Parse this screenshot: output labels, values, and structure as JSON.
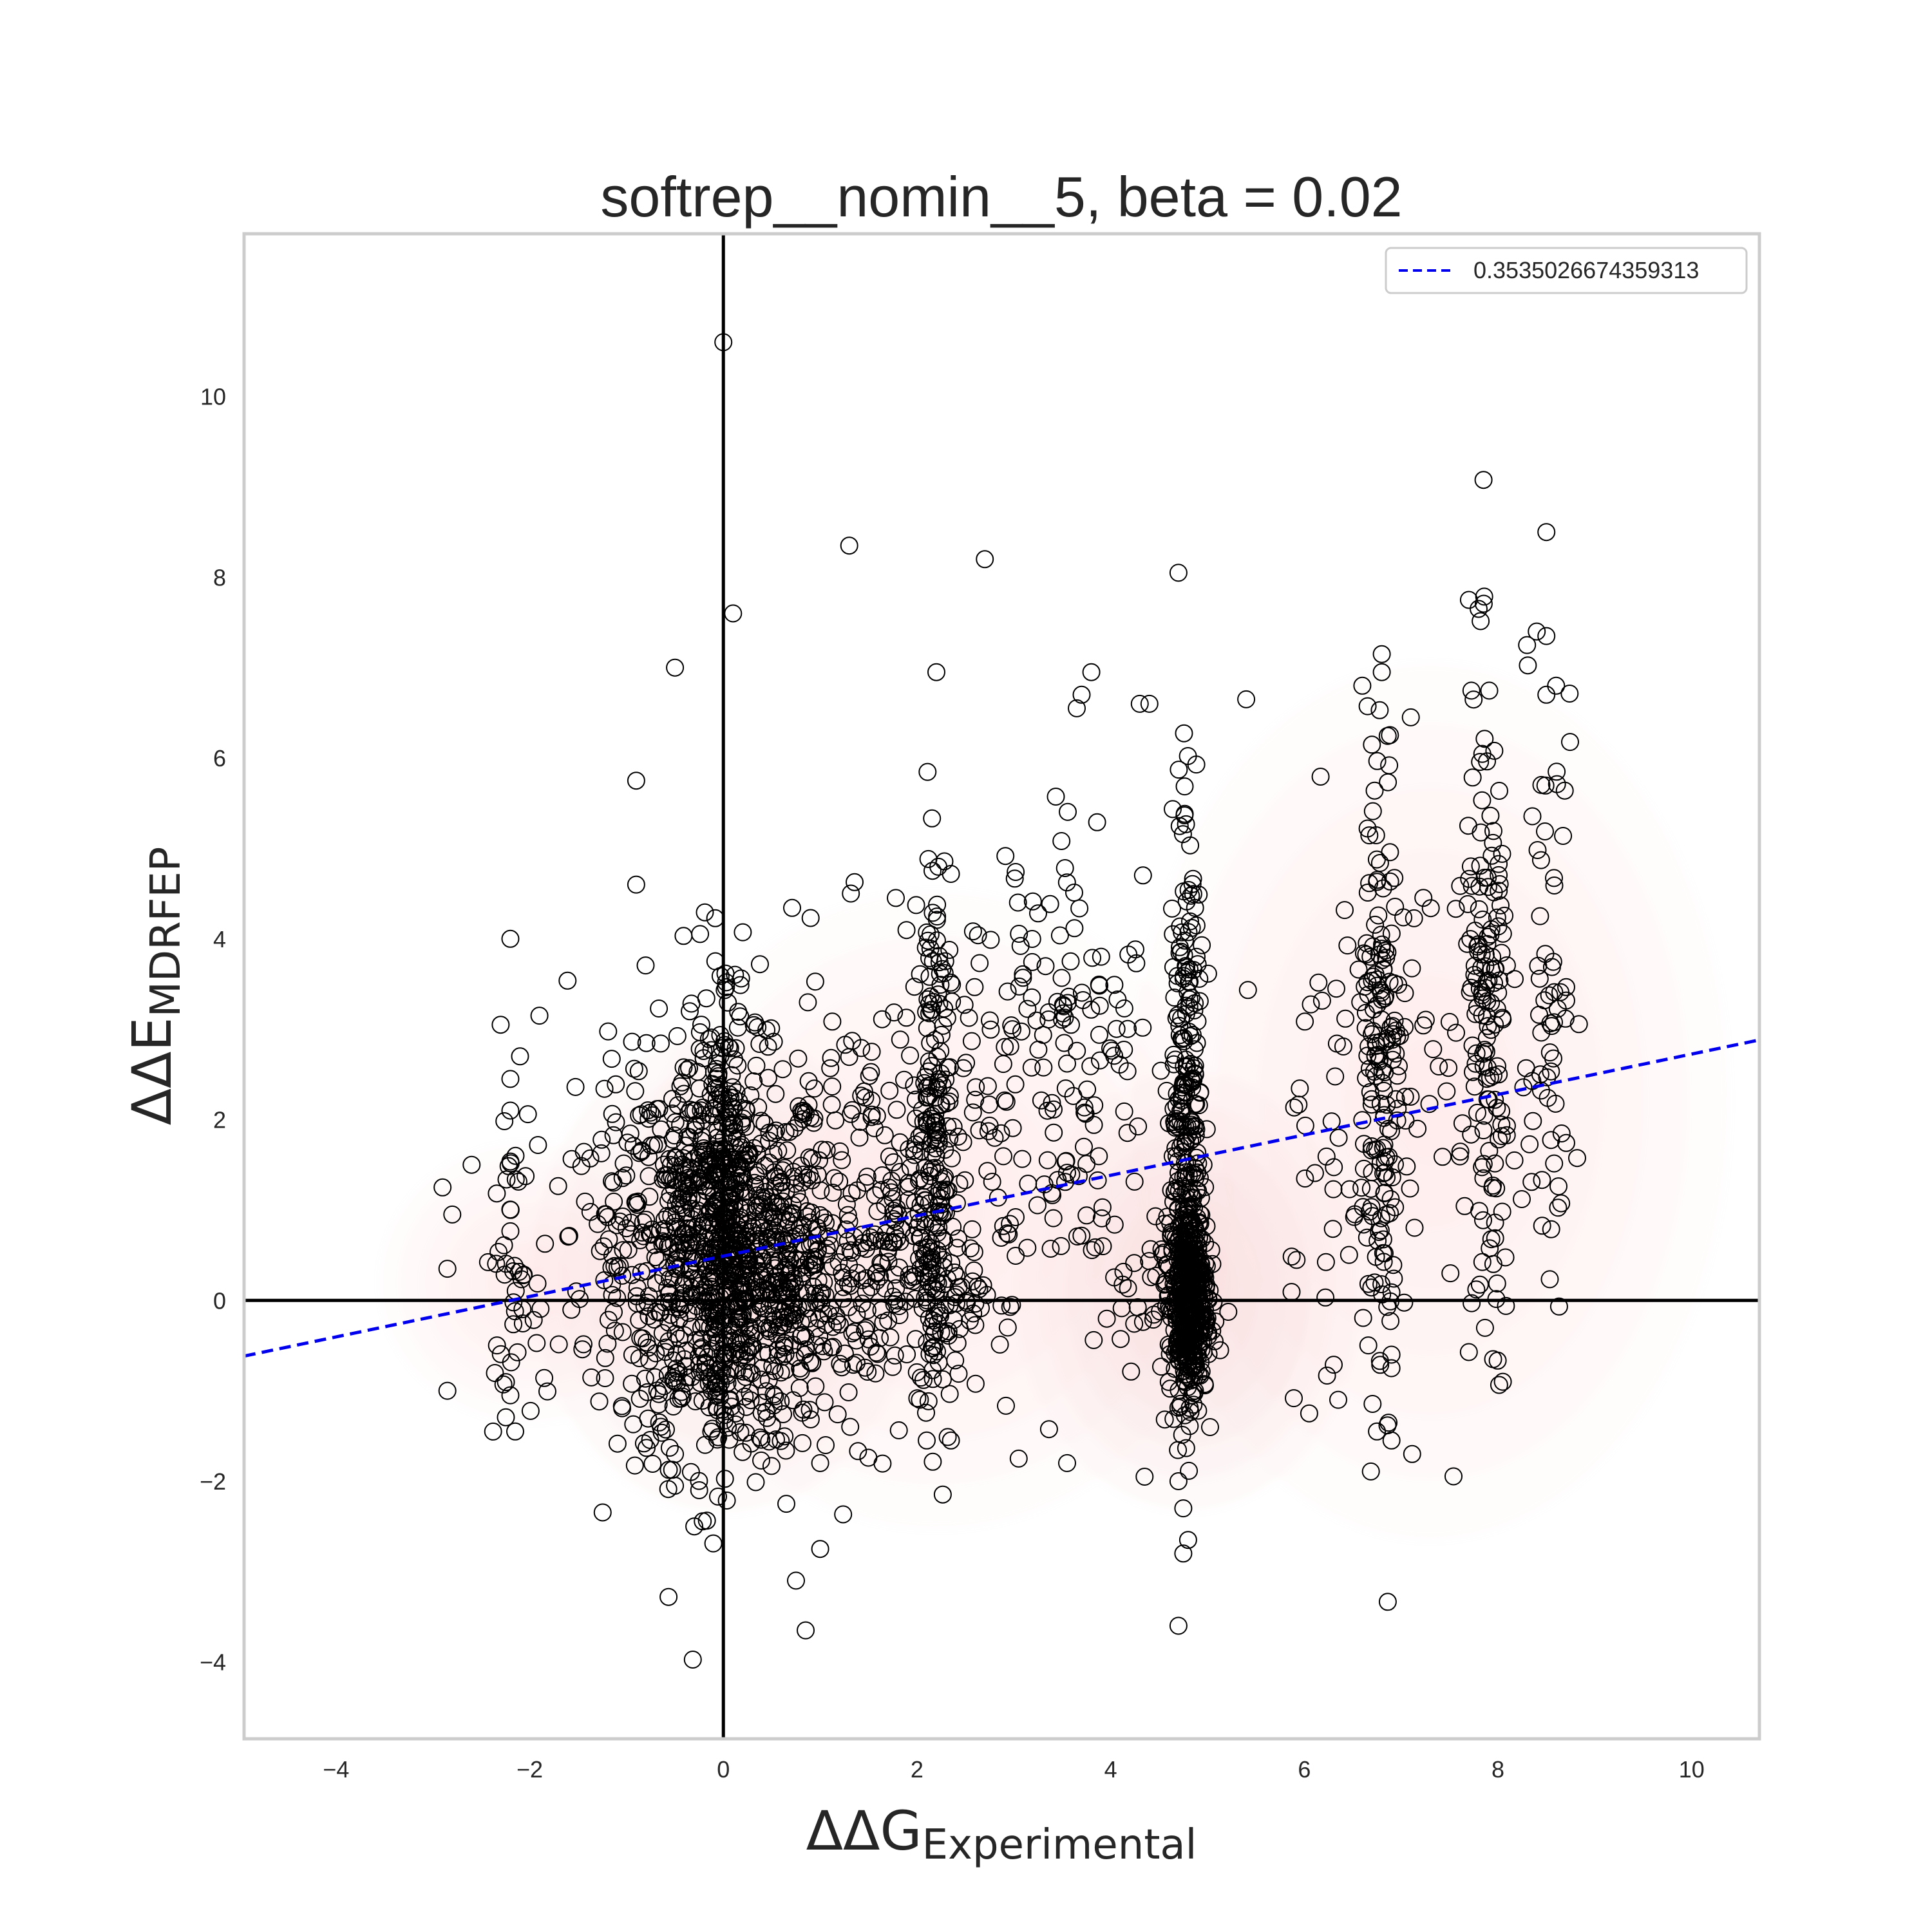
{
  "chart_data": {
    "type": "scatter",
    "title": "softrep__nomin__5, beta = 0.02",
    "xlabel": {
      "main": "ΔΔG",
      "sub": "Experimental"
    },
    "ylabel": {
      "main": "ΔΔE",
      "sub": "MDRFEP"
    },
    "xlim": [
      -4.95,
      10.7
    ],
    "ylim": [
      -4.85,
      11.8
    ],
    "xticks": [
      -4,
      -2,
      0,
      2,
      4,
      6,
      8,
      10
    ],
    "yticks": [
      -4,
      -2,
      0,
      2,
      4,
      6,
      8,
      10
    ],
    "grid": false,
    "legend": {
      "position": "top-right",
      "entries": [
        "0.3535026674359313"
      ]
    },
    "fit_line": {
      "label": "0.3535026674359313",
      "style": "dashed",
      "color": "#0000ee",
      "slope": 0.2235,
      "intercept": 0.49
    },
    "reference_lines": {
      "x": 0,
      "y": 0,
      "color": "#000000"
    },
    "density": {
      "color": "#f8c8c8",
      "blobs": [
        {
          "x": 0.0,
          "y": 0.3,
          "sx": 0.9,
          "sy": 1.2,
          "w": 0.7
        },
        {
          "x": 4.8,
          "y": 0.1,
          "sx": 0.8,
          "sy": 1.1,
          "w": 0.6
        },
        {
          "x": 2.2,
          "y": 1.0,
          "sx": 1.4,
          "sy": 1.6,
          "w": 0.35
        },
        {
          "x": 7.3,
          "y": 2.2,
          "sx": 1.4,
          "sy": 2.2,
          "w": 0.3
        },
        {
          "x": -2.0,
          "y": 0.2,
          "sx": 0.7,
          "sy": 0.7,
          "w": 0.25
        }
      ]
    },
    "points": {
      "outliers": [
        [
          0.0,
          10.6
        ],
        [
          1.3,
          8.35
        ],
        [
          2.7,
          8.2
        ],
        [
          4.7,
          8.05
        ],
        [
          8.5,
          8.5
        ],
        [
          0.1,
          7.6
        ],
        [
          -0.5,
          7.0
        ],
        [
          2.2,
          6.95
        ],
        [
          7.7,
          7.75
        ],
        [
          7.8,
          7.65
        ],
        [
          8.4,
          7.4
        ],
        [
          8.5,
          7.35
        ],
        [
          8.3,
          7.25
        ],
        [
          6.8,
          7.15
        ],
        [
          6.8,
          6.95
        ],
        [
          -0.9,
          5.75
        ],
        [
          -0.9,
          4.6
        ],
        [
          -2.2,
          4.0
        ],
        [
          3.8,
          6.95
        ],
        [
          3.7,
          6.7
        ],
        [
          3.65,
          6.55
        ],
        [
          4.3,
          6.6
        ],
        [
          4.4,
          6.6
        ],
        [
          5.4,
          6.65
        ],
        [
          7.1,
          6.45
        ],
        [
          8.5,
          6.7
        ],
        [
          8.6,
          6.8
        ],
        [
          -2.3,
          3.05
        ],
        [
          -1.9,
          3.15
        ],
        [
          -2.1,
          2.7
        ],
        [
          -2.2,
          2.45
        ],
        [
          -2.2,
          2.1
        ],
        [
          -2.9,
          1.25
        ],
        [
          -2.6,
          1.5
        ],
        [
          -2.8,
          0.95
        ],
        [
          -2.85,
          0.35
        ],
        [
          -2.85,
          -1.0
        ],
        [
          -2.15,
          -1.45
        ],
        [
          -2.2,
          -1.05
        ],
        [
          -0.5,
          -1.7
        ],
        [
          -0.5,
          -2.05
        ],
        [
          -0.25,
          -2.1
        ],
        [
          -0.3,
          -2.5
        ],
        [
          0.65,
          -2.25
        ],
        [
          0.75,
          -3.1
        ],
        [
          0.85,
          -3.65
        ],
        [
          1.0,
          -2.75
        ],
        [
          1.0,
          -1.8
        ],
        [
          4.35,
          -1.95
        ],
        [
          4.7,
          -2.0
        ],
        [
          4.75,
          -2.3
        ],
        [
          4.8,
          -2.65
        ],
        [
          4.75,
          -2.8
        ],
        [
          4.7,
          -3.6
        ],
        [
          3.05,
          -1.75
        ],
        [
          3.55,
          -1.8
        ],
        [
          2.1,
          -1.55
        ],
        [
          2.35,
          -1.55
        ],
        [
          8.05,
          -0.9
        ],
        [
          7.95,
          -0.65
        ],
        [
          6.75,
          -1.45
        ],
        [
          6.9,
          -1.55
        ],
        [
          6.35,
          -1.1
        ],
        [
          6.05,
          -1.25
        ],
        [
          6.9,
          -0.6
        ],
        [
          6.9,
          -0.75
        ]
      ],
      "clusters": [
        {
          "x": 0.0,
          "y": 0.45,
          "sx": 0.55,
          "sy": 1.1,
          "n": 900
        },
        {
          "x": 0.0,
          "y": 1.6,
          "sx": 0.12,
          "sy": 1.2,
          "n": 130
        },
        {
          "x": 0.9,
          "y": 0.1,
          "sx": 0.75,
          "sy": 0.55,
          "n": 220
        },
        {
          "x": 1.6,
          "y": 1.1,
          "sx": 0.6,
          "sy": 1.3,
          "n": 170
        },
        {
          "x": 2.15,
          "y": 1.7,
          "sx": 0.1,
          "sy": 1.5,
          "n": 180
        },
        {
          "x": 2.2,
          "y": 0.2,
          "sx": 0.3,
          "sy": 0.6,
          "n": 60
        },
        {
          "x": 3.2,
          "y": 2.4,
          "sx": 0.55,
          "sy": 1.5,
          "n": 110
        },
        {
          "x": 3.8,
          "y": 2.9,
          "sx": 0.5,
          "sy": 1.4,
          "n": 70
        },
        {
          "x": 4.8,
          "y": 0.0,
          "sx": 0.1,
          "sy": 0.55,
          "n": 450
        },
        {
          "x": 4.8,
          "y": 1.8,
          "sx": 0.08,
          "sy": 1.2,
          "n": 170
        },
        {
          "x": 4.8,
          "y": 3.9,
          "sx": 0.08,
          "sy": 1.1,
          "n": 55
        },
        {
          "x": 4.4,
          "y": 0.2,
          "sx": 0.25,
          "sy": 0.5,
          "n": 40
        },
        {
          "x": 6.3,
          "y": 2.1,
          "sx": 0.3,
          "sy": 1.5,
          "n": 55
        },
        {
          "x": 6.8,
          "y": 2.6,
          "sx": 0.1,
          "sy": 1.9,
          "n": 150
        },
        {
          "x": 7.4,
          "y": 2.4,
          "sx": 0.4,
          "sy": 1.6,
          "n": 50
        },
        {
          "x": 7.9,
          "y": 2.8,
          "sx": 0.12,
          "sy": 1.9,
          "n": 140
        },
        {
          "x": 8.5,
          "y": 3.6,
          "sx": 0.18,
          "sy": 1.6,
          "n": 65
        },
        {
          "x": -2.2,
          "y": 0.2,
          "sx": 0.12,
          "sy": 0.7,
          "n": 45
        },
        {
          "x": -0.8,
          "y": 1.2,
          "sx": 0.5,
          "sy": 1.2,
          "n": 90
        }
      ]
    }
  }
}
